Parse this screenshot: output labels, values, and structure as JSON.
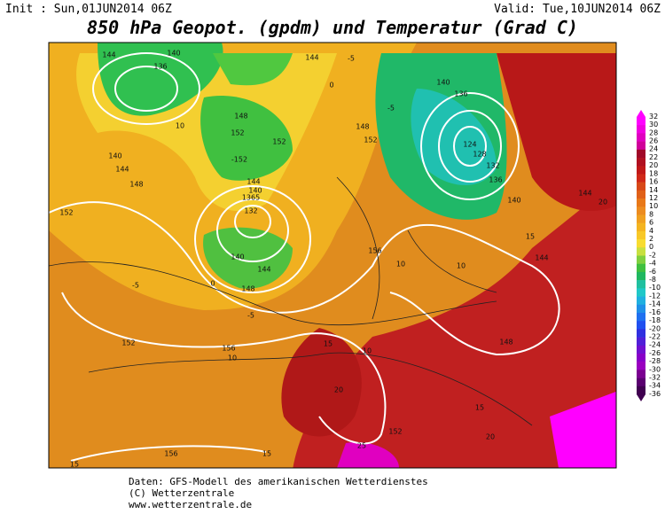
{
  "header": {
    "init": "Init : Sun,01JUN2014 06Z",
    "valid": "Valid: Tue,10JUN2014 06Z",
    "title": "850 hPa Geopot. (gpdm) und Temperatur (Grad C)"
  },
  "map": {
    "labels": [
      "144",
      "140",
      "136",
      "144",
      "-5",
      "0",
      "-5",
      "140",
      "136",
      "148",
      "152",
      "152",
      "-152",
      "148",
      "152",
      "10",
      "140",
      "144",
      "148",
      "152",
      "144",
      "140",
      "1365",
      "132",
      "140",
      "144",
      "148",
      "124",
      "128",
      "132",
      "136",
      "140",
      "156",
      "10",
      "10",
      "15",
      "144",
      "144",
      "20",
      "152",
      "156",
      "10",
      "15",
      "10",
      "148",
      "15",
      "20",
      "152",
      "20",
      "156",
      "15",
      "15",
      "25",
      "0",
      "-5",
      "-5"
    ]
  },
  "colorbar": {
    "labels": [
      32,
      30,
      28,
      26,
      24,
      22,
      20,
      18,
      16,
      14,
      12,
      10,
      8,
      6,
      4,
      2,
      0,
      -2,
      -4,
      -6,
      -8,
      -10,
      -12,
      -14,
      -16,
      -18,
      -20,
      -22,
      -24,
      -26,
      -28,
      -30,
      -32,
      -34,
      -36
    ],
    "colors": [
      "#ff00ff",
      "#f000e0",
      "#e000c0",
      "#d0009a",
      "#a00828",
      "#b01020",
      "#c01818",
      "#d02818",
      "#d84818",
      "#e06018",
      "#e87818",
      "#ec8c20",
      "#f0a020",
      "#f4b420",
      "#f8c828",
      "#f8dc30",
      "#c8e040",
      "#80d040",
      "#40c040",
      "#20b860",
      "#20c0a0",
      "#20c8c8",
      "#20b0e0",
      "#2090e8",
      "#2070f0",
      "#2050f0",
      "#3030e0",
      "#5020d8",
      "#7010d0",
      "#8800c8",
      "#9a00c0",
      "#7a0090",
      "#5a0070",
      "#400050"
    ]
  },
  "footer": {
    "line1": "Daten: GFS-Modell des amerikanischen Wetterdienstes",
    "line2": "(C) Wetterzentrale",
    "line3": "www.wetterzentrale.de"
  }
}
